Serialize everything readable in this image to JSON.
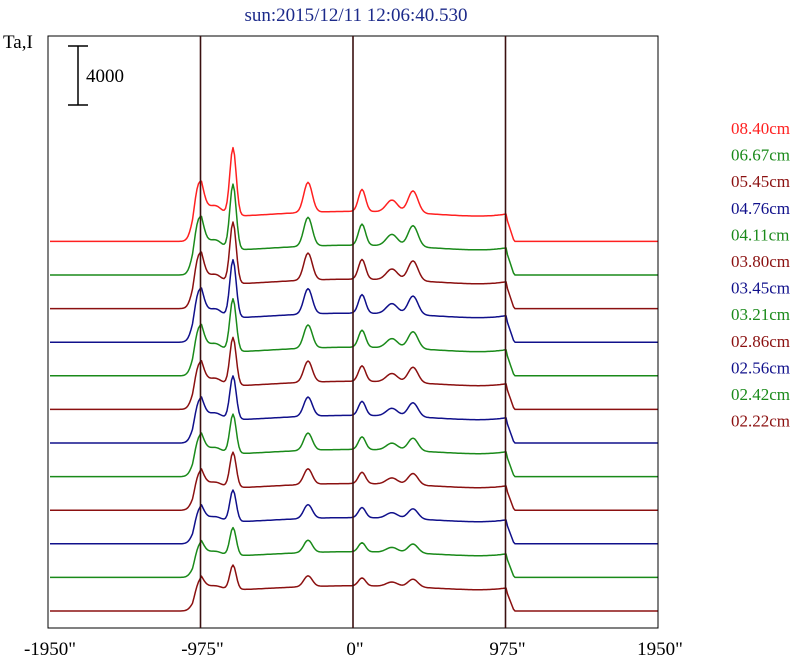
{
  "chart_data": {
    "type": "line",
    "title": "sun:2015/12/11 12:06:40.530",
    "ylabel": "Ta,I",
    "scale_bar_label": "4000",
    "xlim": [
      -1950,
      1950
    ],
    "x_ticks": [
      -1950,
      -975,
      0,
      975,
      1950
    ],
    "x_tick_labels": [
      "-1950\"",
      "-975\"",
      "0\"",
      "975\"",
      "1950\""
    ],
    "vlines": [
      -975,
      0,
      975
    ],
    "grid": false,
    "legend_position": "right",
    "series": [
      {
        "name": "08.40cm",
        "color": "#ff2020",
        "offset": 11,
        "scale": 1.0
      },
      {
        "name": "06.67cm",
        "color": "#1a8a1a",
        "offset": 10,
        "scale": 0.98
      },
      {
        "name": "05.45cm",
        "color": "#8b1010",
        "offset": 9,
        "scale": 0.95
      },
      {
        "name": "04.76cm",
        "color": "#10108b",
        "offset": 8,
        "scale": 0.92
      },
      {
        "name": "04.11cm",
        "color": "#1a8a1a",
        "offset": 7,
        "scale": 0.88
      },
      {
        "name": "03.80cm",
        "color": "#8b1010",
        "offset": 6,
        "scale": 0.84
      },
      {
        "name": "03.45cm",
        "color": "#10108b",
        "offset": 5,
        "scale": 0.8
      },
      {
        "name": "03.21cm",
        "color": "#1a8a1a",
        "offset": 4,
        "scale": 0.76
      },
      {
        "name": "02.86cm",
        "color": "#8b1010",
        "offset": 3,
        "scale": 0.72
      },
      {
        "name": "02.56cm",
        "color": "#10108b",
        "offset": 2,
        "scale": 0.68
      },
      {
        "name": "02.42cm",
        "color": "#1a8a1a",
        "offset": 1,
        "scale": 0.64
      },
      {
        "name": "02.22cm",
        "color": "#8b1010",
        "offset": 0,
        "scale": 0.6
      }
    ]
  }
}
